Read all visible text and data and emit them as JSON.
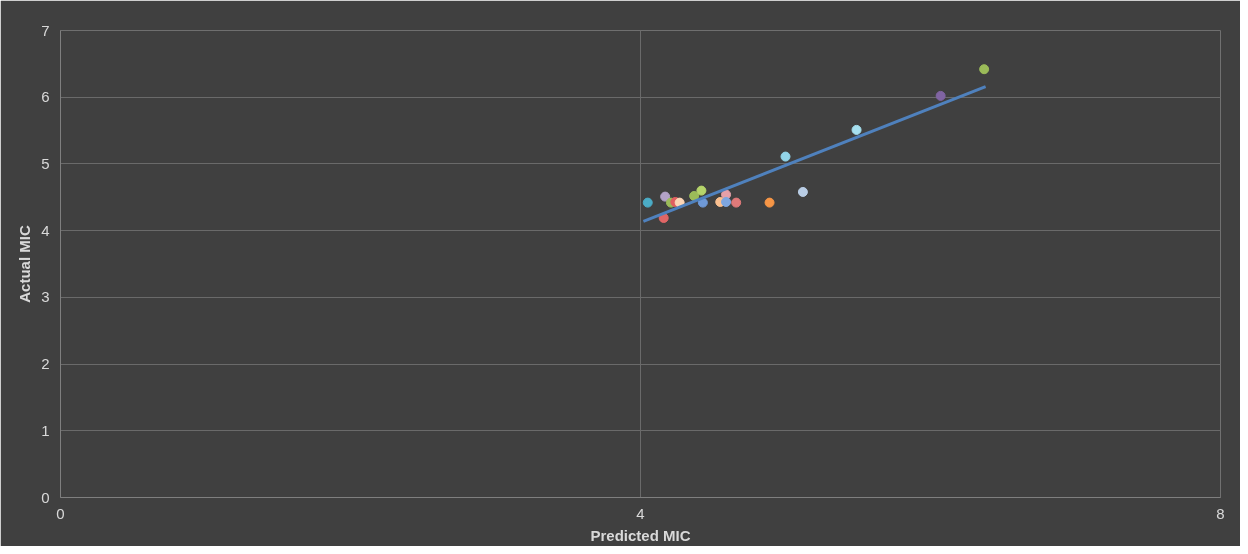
{
  "chart_data": {
    "type": "scatter",
    "xlabel": "Predicted MIC",
    "ylabel": "Actual MIC",
    "xlim": [
      0,
      8
    ],
    "ylim": [
      0,
      7
    ],
    "xticks": [
      0,
      4,
      8
    ],
    "yticks": [
      0,
      1,
      2,
      3,
      4,
      5,
      6,
      7
    ],
    "grid": true,
    "marker": "circle",
    "series": [
      {
        "x": [
          4.05,
          4.17,
          4.21,
          4.24,
          4.27,
          4.16,
          4.37,
          4.42,
          4.43,
          4.59,
          4.55,
          4.59,
          4.66,
          4.89,
          5.12,
          5.0,
          5.49,
          6.07,
          6.37
        ],
        "values": [
          4.42,
          4.51,
          4.42,
          4.43,
          4.42,
          4.19,
          4.52,
          4.6,
          4.42,
          4.54,
          4.43,
          4.43,
          4.42,
          4.42,
          4.58,
          5.11,
          5.51,
          6.02,
          6.42
        ],
        "colors": [
          "#4bacc6",
          "#b3a2c7",
          "#9bbb59",
          "#e06060",
          "#fcd5b5",
          "#e06666",
          "#9bbb59",
          "#b5d46a",
          "#6f9ad8",
          "#e6a0a8",
          "#fac090",
          "#7ea6e0",
          "#e07a7a",
          "#f79646",
          "#b9cde5",
          "#92d4e8",
          "#a6e0f0",
          "#8064a2",
          "#9bbb59"
        ]
      },
      {
        "type": "line",
        "color": "#4f81bd",
        "x": [
          4.02,
          6.38
        ],
        "values": [
          4.14,
          6.16
        ],
        "marker": "none"
      }
    ]
  }
}
